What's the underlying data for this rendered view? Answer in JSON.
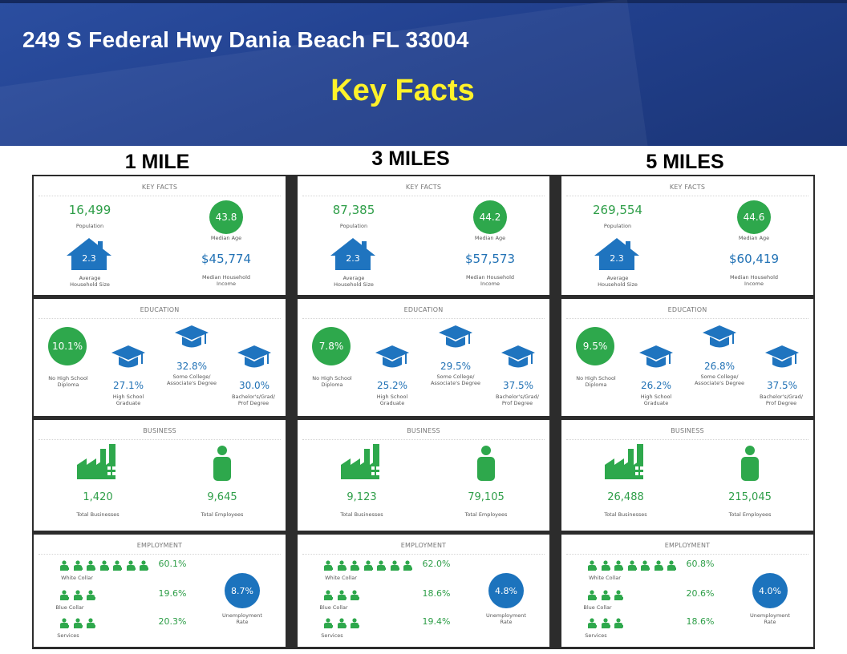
{
  "header": {
    "address": "249 S Federal Hwy Dania Beach FL 33004",
    "title": "Key Facts"
  },
  "columns": [
    {
      "heading": "1 MILE",
      "key_facts": {
        "title": "KEY FACTS",
        "population": "16,499",
        "population_label": "Population",
        "median_age": "43.8",
        "median_age_label": "Median Age",
        "household_size": "2.3",
        "household_size_label_1": "Average",
        "household_size_label_2": "Household Size",
        "income": "$45,774",
        "income_label_1": "Median Household",
        "income_label_2": "Income"
      },
      "education": {
        "title": "EDUCATION",
        "no_hs": "10.1%",
        "no_hs_label_1": "No High School",
        "no_hs_label_2": "Diploma",
        "hs": "27.1%",
        "hs_label_1": "High School",
        "hs_label_2": "Graduate",
        "some_college": "32.8%",
        "some_college_label_1": "Some College/",
        "some_college_label_2": "Associate's Degree",
        "bachelors": "30.0%",
        "bachelors_label_1": "Bachelor's/Grad/",
        "bachelors_label_2": "Prof Degree"
      },
      "business": {
        "title": "BUSINESS",
        "businesses": "1,420",
        "businesses_label": "Total Businesses",
        "employees": "9,645",
        "employees_label": "Total Employees"
      },
      "employment": {
        "title": "EMPLOYMENT",
        "white_collar": "60.1%",
        "white_collar_label": "White Collar",
        "blue_collar": "19.6%",
        "blue_collar_label": "Blue Collar",
        "services": "20.3%",
        "services_label": "Services",
        "unemployment": "8.7%",
        "unemployment_label_1": "Unemployment",
        "unemployment_label_2": "Rate"
      }
    },
    {
      "heading": "3 MILES",
      "key_facts": {
        "title": "KEY FACTS",
        "population": "87,385",
        "population_label": "Population",
        "median_age": "44.2",
        "median_age_label": "Median Age",
        "household_size": "2.3",
        "household_size_label_1": "Average",
        "household_size_label_2": "Household Size",
        "income": "$57,573",
        "income_label_1": "Median Household",
        "income_label_2": "Income"
      },
      "education": {
        "title": "EDUCATION",
        "no_hs": "7.8%",
        "no_hs_label_1": "No High School",
        "no_hs_label_2": "Diploma",
        "hs": "25.2%",
        "hs_label_1": "High School",
        "hs_label_2": "Graduate",
        "some_college": "29.5%",
        "some_college_label_1": "Some College/",
        "some_college_label_2": "Associate's Degree",
        "bachelors": "37.5%",
        "bachelors_label_1": "Bachelor's/Grad/",
        "bachelors_label_2": "Prof Degree"
      },
      "business": {
        "title": "BUSINESS",
        "businesses": "9,123",
        "businesses_label": "Total Businesses",
        "employees": "79,105",
        "employees_label": "Total Employees"
      },
      "employment": {
        "title": "EMPLOYMENT",
        "white_collar": "62.0%",
        "white_collar_label": "White Collar",
        "blue_collar": "18.6%",
        "blue_collar_label": "Blue Collar",
        "services": "19.4%",
        "services_label": "Services",
        "unemployment": "4.8%",
        "unemployment_label_1": "Unemployment",
        "unemployment_label_2": "Rate"
      }
    },
    {
      "heading": "5 MILES",
      "key_facts": {
        "title": "KEY FACTS",
        "population": "269,554",
        "population_label": "Population",
        "median_age": "44.6",
        "median_age_label": "Median Age",
        "household_size": "2.3",
        "household_size_label_1": "Average",
        "household_size_label_2": "Household Size",
        "income": "$60,419",
        "income_label_1": "Median Household",
        "income_label_2": "Income"
      },
      "education": {
        "title": "EDUCATION",
        "no_hs": "9.5%",
        "no_hs_label_1": "No High School",
        "no_hs_label_2": "Diploma",
        "hs": "26.2%",
        "hs_label_1": "High School",
        "hs_label_2": "Graduate",
        "some_college": "26.8%",
        "some_college_label_1": "Some College/",
        "some_college_label_2": "Associate's Degree",
        "bachelors": "37.5%",
        "bachelors_label_1": "Bachelor's/Grad/",
        "bachelors_label_2": "Prof Degree"
      },
      "business": {
        "title": "BUSINESS",
        "businesses": "26,488",
        "businesses_label": "Total Businesses",
        "employees": "215,045",
        "employees_label": "Total Employees"
      },
      "employment": {
        "title": "EMPLOYMENT",
        "white_collar": "60.8%",
        "white_collar_label": "White Collar",
        "blue_collar": "20.6%",
        "blue_collar_label": "Blue Collar",
        "services": "18.6%",
        "services_label": "Services",
        "unemployment": "4.0%",
        "unemployment_label_1": "Unemployment",
        "unemployment_label_2": "Rate"
      }
    }
  ],
  "colors": {
    "banner": "#22418f",
    "title_yellow": "#fff22a",
    "green": "#2e9e48",
    "blue": "#2272b5"
  },
  "icons": [
    "house-icon",
    "graduation-cap-icon",
    "factory-icon",
    "person-icon",
    "worker-icon"
  ]
}
